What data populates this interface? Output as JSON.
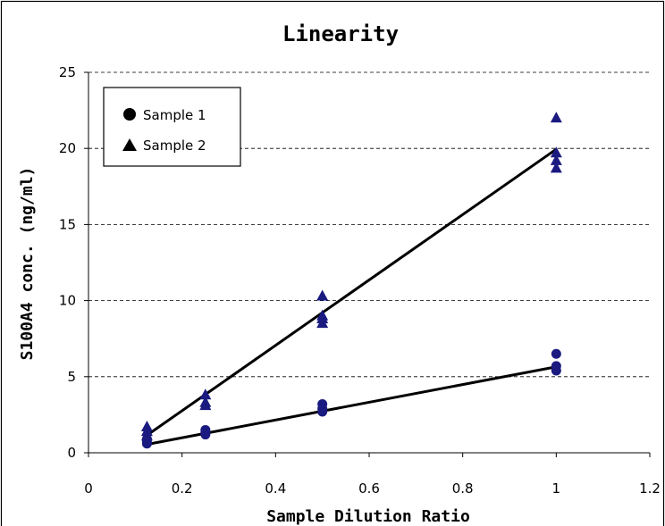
{
  "chart_data": {
    "type": "scatter",
    "title": "Linearity",
    "xlabel": "Sample Dilution Ratio",
    "ylabel": "S100A4 conc. (ng/ml)",
    "xlim": [
      0,
      1.2
    ],
    "ylim": [
      0,
      25
    ],
    "x_ticks": [
      "0",
      "0.2",
      "0.4",
      "0.6",
      "0.8",
      "1",
      "1.2"
    ],
    "y_ticks": [
      "0",
      "5",
      "10",
      "15",
      "20",
      "25"
    ],
    "grid": "horizontal-dashed",
    "legend_position": "top-left",
    "marker_color": "#1a1a80",
    "line_color": "#000000",
    "series": [
      {
        "name": "Sample 1",
        "marker": "circle",
        "points": [
          {
            "x": 0.125,
            "y": 0.6
          },
          {
            "x": 0.125,
            "y": 0.75
          },
          {
            "x": 0.125,
            "y": 0.9
          },
          {
            "x": 0.25,
            "y": 1.2
          },
          {
            "x": 0.25,
            "y": 1.35
          },
          {
            "x": 0.25,
            "y": 1.5
          },
          {
            "x": 0.5,
            "y": 2.7
          },
          {
            "x": 0.5,
            "y": 2.9
          },
          {
            "x": 0.5,
            "y": 3.2
          },
          {
            "x": 1,
            "y": 5.4
          },
          {
            "x": 1,
            "y": 5.7
          },
          {
            "x": 1,
            "y": 6.5
          }
        ],
        "trendline": {
          "x": [
            0.125,
            1
          ],
          "y": [
            0.55,
            5.65
          ]
        }
      },
      {
        "name": "Sample 2",
        "marker": "triangle",
        "points": [
          {
            "x": 0.125,
            "y": 1.1
          },
          {
            "x": 0.125,
            "y": 1.4
          },
          {
            "x": 0.125,
            "y": 1.7
          },
          {
            "x": 0.25,
            "y": 3.1
          },
          {
            "x": 0.25,
            "y": 3.3
          },
          {
            "x": 0.25,
            "y": 3.8
          },
          {
            "x": 0.5,
            "y": 8.5
          },
          {
            "x": 0.5,
            "y": 8.8
          },
          {
            "x": 0.5,
            "y": 9.0
          },
          {
            "x": 0.5,
            "y": 10.3
          },
          {
            "x": 1,
            "y": 18.7
          },
          {
            "x": 1,
            "y": 19.2
          },
          {
            "x": 1,
            "y": 19.7
          },
          {
            "x": 1,
            "y": 22.0
          }
        ],
        "trendline": {
          "x": [
            0.125,
            1
          ],
          "y": [
            1.15,
            19.95
          ]
        }
      }
    ]
  }
}
